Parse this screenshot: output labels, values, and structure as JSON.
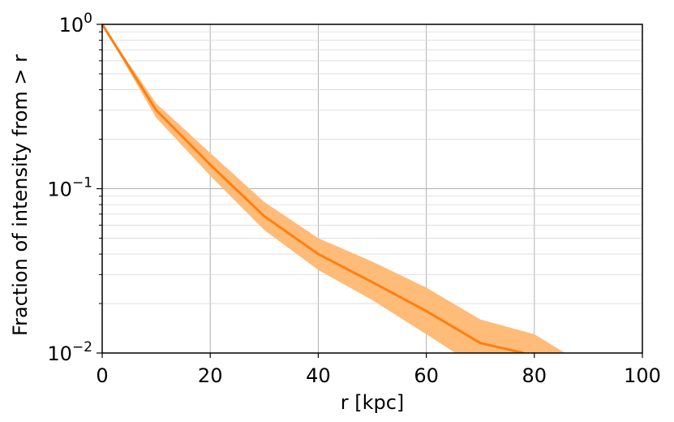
{
  "chart_data": {
    "type": "line",
    "xlabel": "r [kpc]",
    "ylabel": "Fraction of intensity from > r",
    "xlim": [
      0,
      100
    ],
    "ylim": [
      0.01,
      1
    ],
    "yscale": "log",
    "grid": true,
    "colors": {
      "line": "#ff7f0e",
      "band": "#ffbb78",
      "grid": "#b0b0b0"
    },
    "x_ticks": [
      "0",
      "20",
      "40",
      "60",
      "80",
      "100"
    ],
    "y_ticks": [
      {
        "base": "10",
        "exp": "0"
      },
      {
        "base": "10",
        "exp": "−1"
      },
      {
        "base": "10",
        "exp": "−2"
      }
    ],
    "series": [
      {
        "x": [
          0,
          10,
          20,
          30,
          40,
          50,
          60,
          70,
          78
        ],
        "y": [
          1.0,
          0.3,
          0.14,
          0.068,
          0.04,
          0.027,
          0.018,
          0.0115,
          0.01
        ]
      }
    ],
    "band": {
      "x": [
        0,
        10,
        20,
        30,
        40,
        50,
        60,
        70,
        80,
        85.7
      ],
      "upper": [
        1.0,
        0.33,
        0.165,
        0.083,
        0.05,
        0.036,
        0.025,
        0.016,
        0.013,
        0.01
      ],
      "lower": [
        1.0,
        0.27,
        0.12,
        0.056,
        0.032,
        0.021,
        0.013,
        0.008,
        0.0055,
        0.0045
      ]
    }
  }
}
